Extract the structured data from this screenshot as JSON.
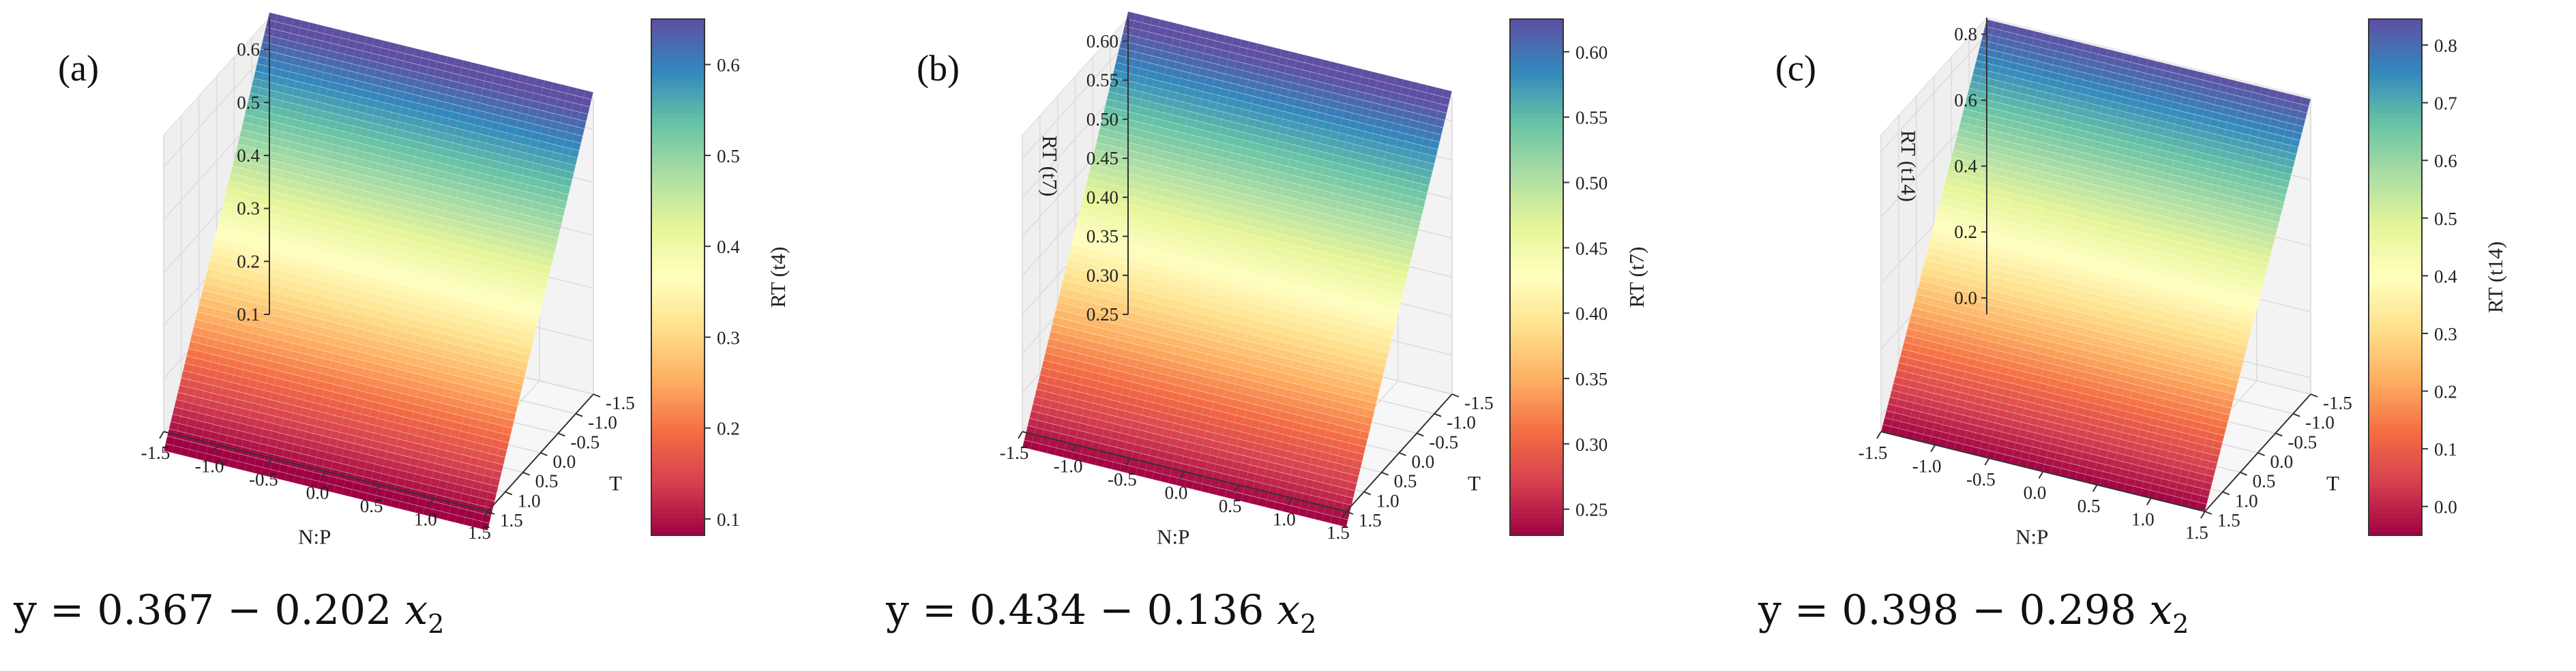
{
  "chart_data": [
    {
      "type": "surface3d",
      "panel_label": "(a)",
      "xlabel": "N:P",
      "ylabel": "T",
      "zlabel": "",
      "colorbar_label": "RT (t4)",
      "x_ticks": [
        "-1.5",
        "-1.0",
        "-0.5",
        "0.0",
        "0.5",
        "1.0",
        "1.5"
      ],
      "y_ticks": [
        "1.5",
        "1.0",
        "0.5",
        "0.0",
        "-0.5",
        "-1.0",
        "-1.5"
      ],
      "z_ticks": [
        "0.1",
        "0.2",
        "0.3",
        "0.4",
        "0.5",
        "0.6"
      ],
      "colorbar_ticks": [
        "0.1",
        "0.2",
        "0.3",
        "0.4",
        "0.5",
        "0.6"
      ],
      "x_range": [
        -1.5,
        1.5
      ],
      "y_range": [
        -1.5,
        1.5
      ],
      "zlim": [
        0.1,
        0.66
      ],
      "cbar_range": [
        0.082,
        0.65
      ],
      "intercept": 0.367,
      "slope": -0.202,
      "equation": {
        "prefix": "y = 0.367 − 0.202 ",
        "var": "x",
        "sub": "2"
      }
    },
    {
      "type": "surface3d",
      "panel_label": "(b)",
      "xlabel": "N:P",
      "ylabel": "T",
      "zlabel": "RT (t7)",
      "colorbar_label": "RT (t7)",
      "x_ticks": [
        "-1.5",
        "-1.0",
        "-0.5",
        "0.0",
        "0.5",
        "1.0",
        "1.5"
      ],
      "y_ticks": [
        "1.5",
        "1.0",
        "0.5",
        "0.0",
        "-0.5",
        "-1.0",
        "-1.5"
      ],
      "z_ticks": [
        "0.25",
        "0.30",
        "0.35",
        "0.40",
        "0.45",
        "0.50",
        "0.55",
        "0.60"
      ],
      "colorbar_ticks": [
        "0.25",
        "0.30",
        "0.35",
        "0.40",
        "0.45",
        "0.50",
        "0.55",
        "0.60"
      ],
      "x_range": [
        -1.5,
        1.5
      ],
      "y_range": [
        -1.5,
        1.5
      ],
      "zlim": [
        0.25,
        0.63
      ],
      "cbar_range": [
        0.23,
        0.625
      ],
      "intercept": 0.434,
      "slope": -0.136,
      "equation": {
        "prefix": "y = 0.434 − 0.136 ",
        "var": "x",
        "sub": "2"
      }
    },
    {
      "type": "surface3d",
      "panel_label": "(c)",
      "xlabel": "N:P",
      "ylabel": "T",
      "zlabel": "RT (t14)",
      "colorbar_label": "RT (t14)",
      "x_ticks": [
        "-1.5",
        "-1.0",
        "-0.5",
        "0.0",
        "0.5",
        "1.0",
        "1.5"
      ],
      "y_ticks": [
        "1.5",
        "1.0",
        "0.5",
        "0.0",
        "-0.5",
        "-1.0",
        "-1.5"
      ],
      "z_ticks": [
        "0.0",
        "0.2",
        "0.4",
        "0.6",
        "0.8"
      ],
      "colorbar_ticks": [
        "0.0",
        "0.1",
        "0.2",
        "0.3",
        "0.4",
        "0.5",
        "0.6",
        "0.7",
        "0.8"
      ],
      "x_range": [
        -1.5,
        1.5
      ],
      "y_range": [
        -1.5,
        1.5
      ],
      "zlim": [
        -0.05,
        0.85
      ],
      "cbar_range": [
        -0.05,
        0.845
      ],
      "intercept": 0.398,
      "slope": -0.298,
      "equation": {
        "prefix": "y = 0.398 − 0.298 ",
        "var": "x",
        "sub": "2"
      }
    }
  ],
  "colormap": [
    "#9e0142",
    "#d53e4f",
    "#f46d43",
    "#fdae61",
    "#fee08b",
    "#ffffbf",
    "#e6f598",
    "#abdda4",
    "#66c2a5",
    "#3288bd",
    "#5e4fa2"
  ]
}
